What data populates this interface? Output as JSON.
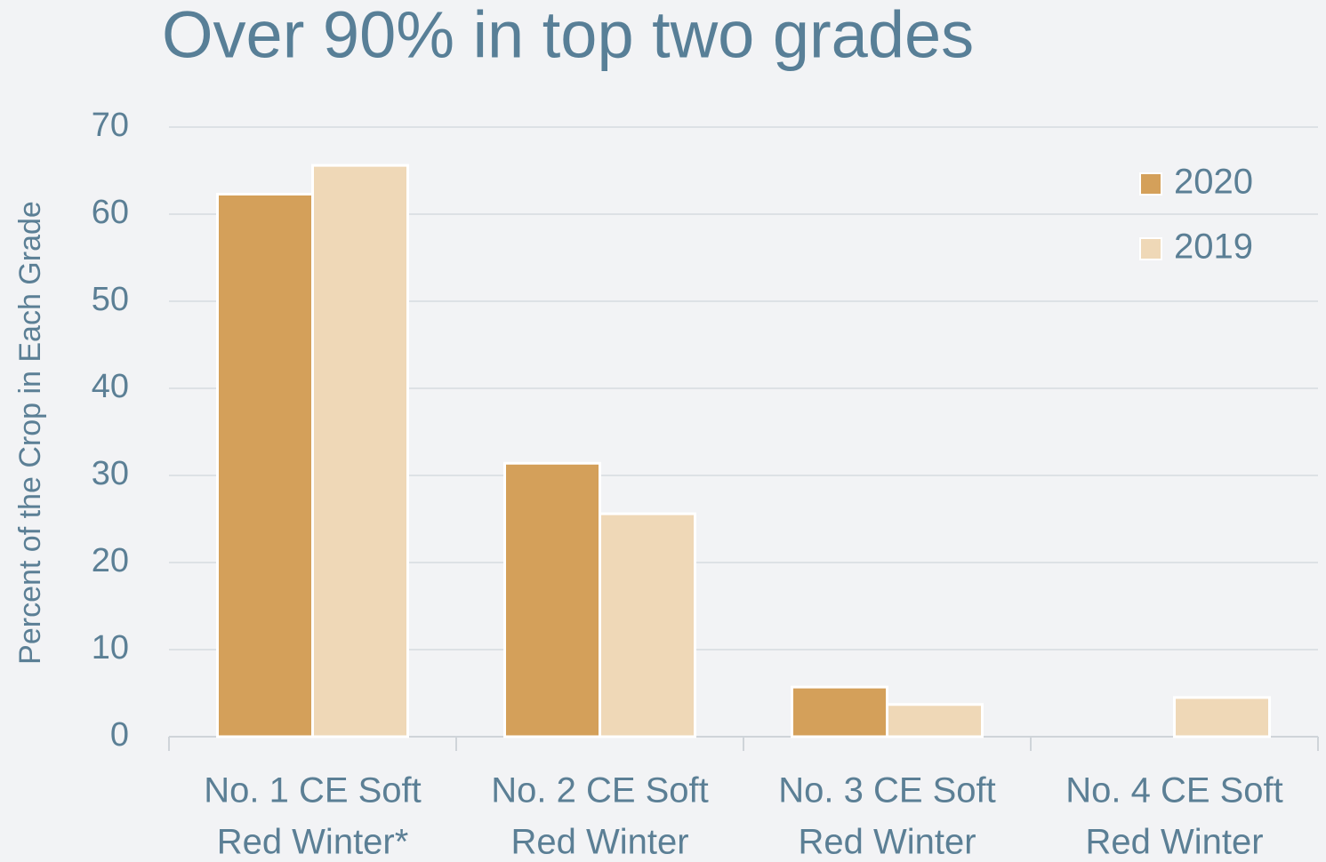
{
  "chart_data": {
    "type": "bar",
    "title": "Over 90% in top two grades",
    "y_axis_label": "Percent of the Crop in Each Grade",
    "categories": [
      [
        "No. 1 CE Soft",
        "Red Winter*"
      ],
      [
        "No. 2 CE Soft",
        "Red Winter"
      ],
      [
        "No. 3 CE Soft",
        "Red Winter"
      ],
      [
        "No. 4 CE Soft",
        "Red Winter"
      ]
    ],
    "series": [
      {
        "name": "2020",
        "color": "#d4a05a",
        "values": [
          62.3,
          31.4,
          5.7,
          0
        ]
      },
      {
        "name": "2019",
        "color": "#efd8b7",
        "values": [
          65.6,
          25.6,
          3.7,
          4.5
        ]
      }
    ],
    "ylim": [
      0,
      70
    ],
    "yticks": [
      0,
      10,
      20,
      30,
      40,
      50,
      60,
      70
    ],
    "grid": true,
    "legend": "top-right"
  }
}
